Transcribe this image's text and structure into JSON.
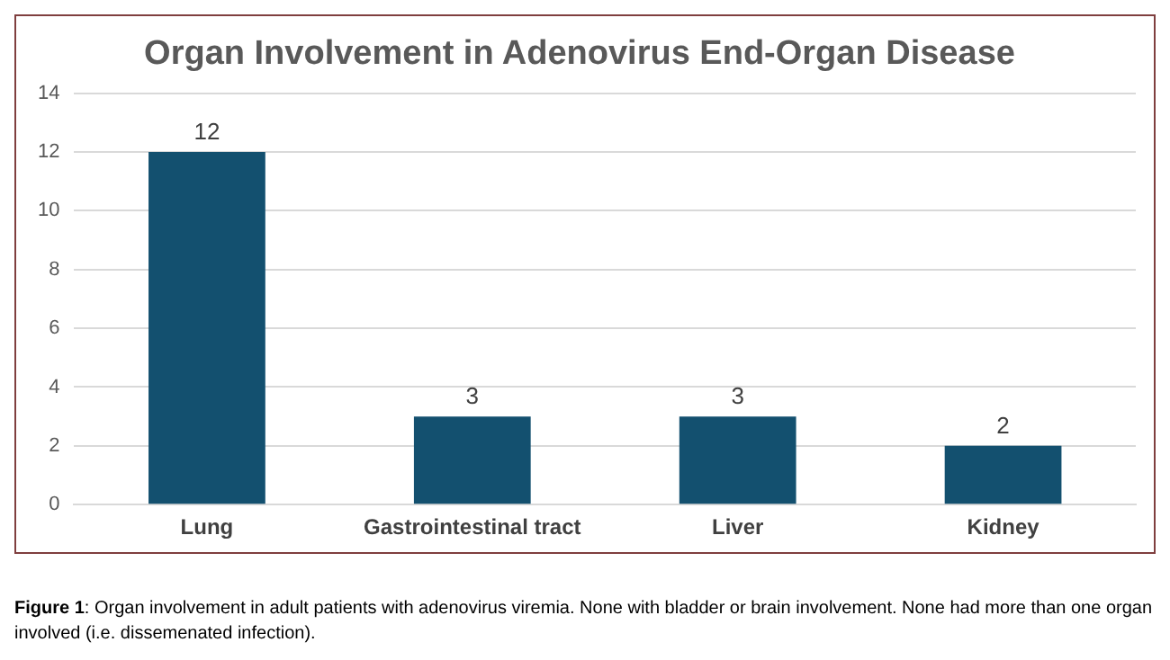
{
  "chart_data": {
    "type": "bar",
    "title": "Organ Involvement in Adenovirus End-Organ Disease",
    "categories": [
      "Lung",
      "Gastrointestinal tract",
      "Liver",
      "Kidney"
    ],
    "values": [
      12,
      3,
      3,
      2
    ],
    "color": "#13506f",
    "ylim": [
      0,
      14
    ],
    "yticks": [
      0,
      2,
      4,
      6,
      8,
      10,
      12,
      14
    ],
    "grid": "y",
    "data_labels": true,
    "annotations": [
      "Figure 1: Organ involvement in adult patients with adenovirus viremia.  None with bladder or brain involvement. None had more than one organ involved (i.e. dissemenated infection)."
    ]
  }
}
